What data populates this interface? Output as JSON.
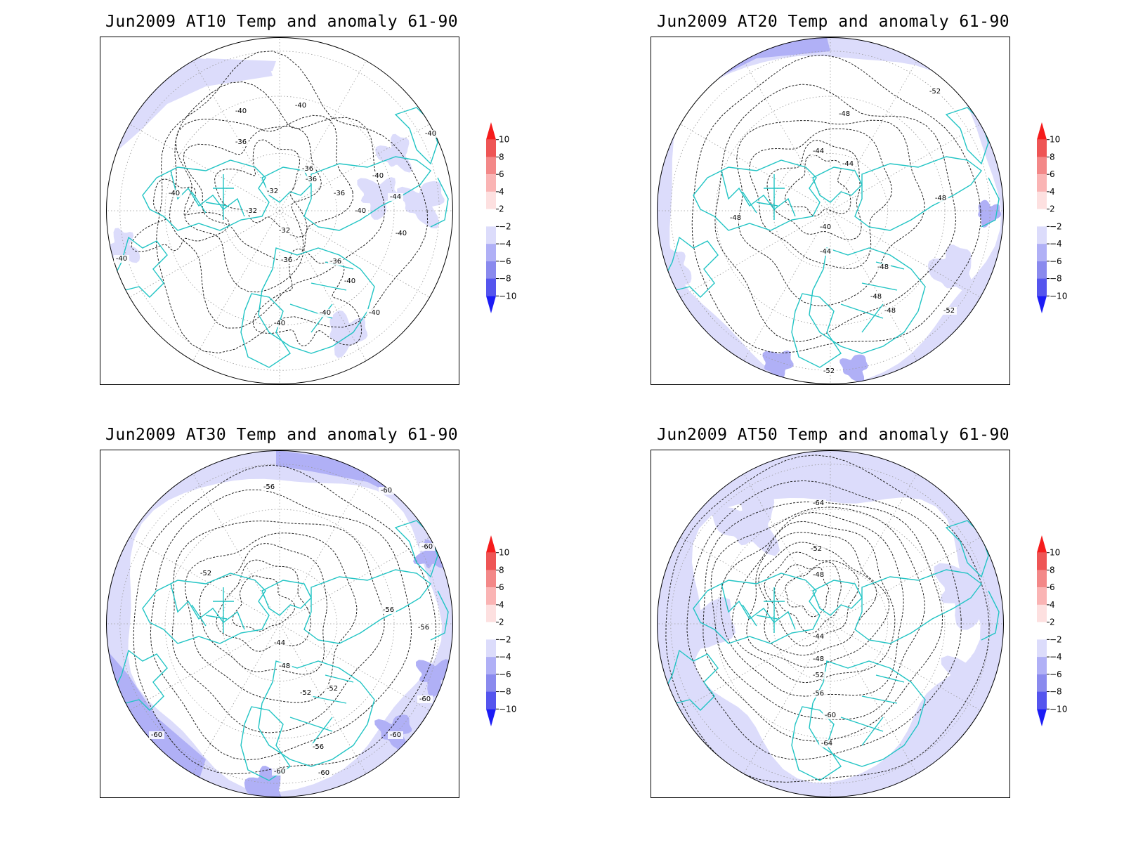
{
  "colors": {
    "coast": "#21c4c4",
    "anom_m2": "#dcdcfb",
    "anom_m4": "#b0b0f6",
    "anom_m6": "#8a8aee",
    "anom_m8": "#5555ee",
    "anom_m10": "#1c1cf5",
    "anom_p2": "#fde0e0",
    "anom_p4": "#fab4b4",
    "anom_p6": "#f38888",
    "anom_p8": "#ee5555",
    "anom_p10": "#f51c1c"
  },
  "colorbar": {
    "labels": [
      "10",
      "8",
      "6",
      "4",
      "2",
      "−2",
      "−4",
      "−6",
      "−8",
      "−10"
    ]
  },
  "panels": [
    {
      "title": "Jun2009 AT10 Temp and anomaly 61-90",
      "contour_labels": [
        "-40",
        "-40",
        "-36",
        "-40",
        "-36",
        "-36",
        "-32",
        "-32",
        "-32",
        "-36",
        "-36",
        "-40",
        "-40",
        "-40",
        "-44",
        "-40",
        "-40",
        "-40",
        "-40",
        "-40",
        "-40",
        "-36"
      ]
    },
    {
      "title": "Jun2009 AT20 Temp and anomaly 61-90",
      "contour_labels": [
        "-52",
        "-48",
        "-44",
        "-44",
        "-48",
        "-48",
        "-40",
        "-44",
        "-48",
        "-48",
        "-48",
        "-52",
        "-52"
      ]
    },
    {
      "title": "Jun2009 AT30 Temp and anomaly 61-90",
      "contour_labels": [
        "-56",
        "-60",
        "-52",
        "-60",
        "-56",
        "-56",
        "-44",
        "-48",
        "-52",
        "-52",
        "-56",
        "-60",
        "-60",
        "-60",
        "-60",
        "-60"
      ]
    },
    {
      "title": "Jun2009 AT50 Temp and anomaly 61-90",
      "contour_labels": [
        "-64",
        "-52",
        "-48",
        "-44",
        "-48",
        "-52",
        "-56",
        "-60",
        "-64"
      ]
    }
  ]
}
